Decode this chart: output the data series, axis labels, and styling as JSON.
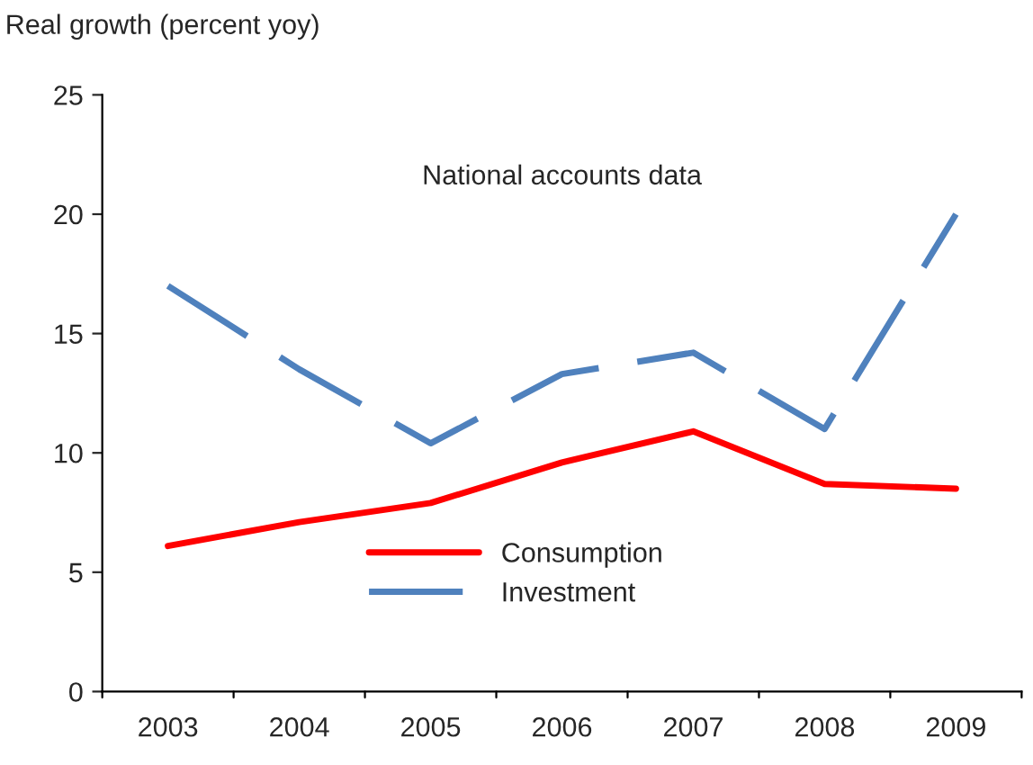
{
  "chart_data": {
    "type": "line",
    "ylabel": "Real growth (percent yoy)",
    "categories": [
      "2003",
      "2004",
      "2005",
      "2006",
      "2007",
      "2008",
      "2009"
    ],
    "series": [
      {
        "name": "Consumption",
        "color": "#ff0000",
        "line_style": "solid",
        "values": [
          6.1,
          7.1,
          7.9,
          9.6,
          10.9,
          8.7,
          8.5
        ]
      },
      {
        "name": "Investment",
        "color": "#4f81bd",
        "line_style": "dashed",
        "values": [
          17.0,
          13.5,
          10.4,
          13.3,
          14.2,
          11.0,
          20.0
        ]
      }
    ],
    "ylim": [
      0,
      25
    ],
    "yticks": [
      0,
      5,
      10,
      15,
      20,
      25
    ],
    "annotations": [
      "National accounts data"
    ],
    "legend": "bottom",
    "grid": false,
    "marker": "none"
  }
}
